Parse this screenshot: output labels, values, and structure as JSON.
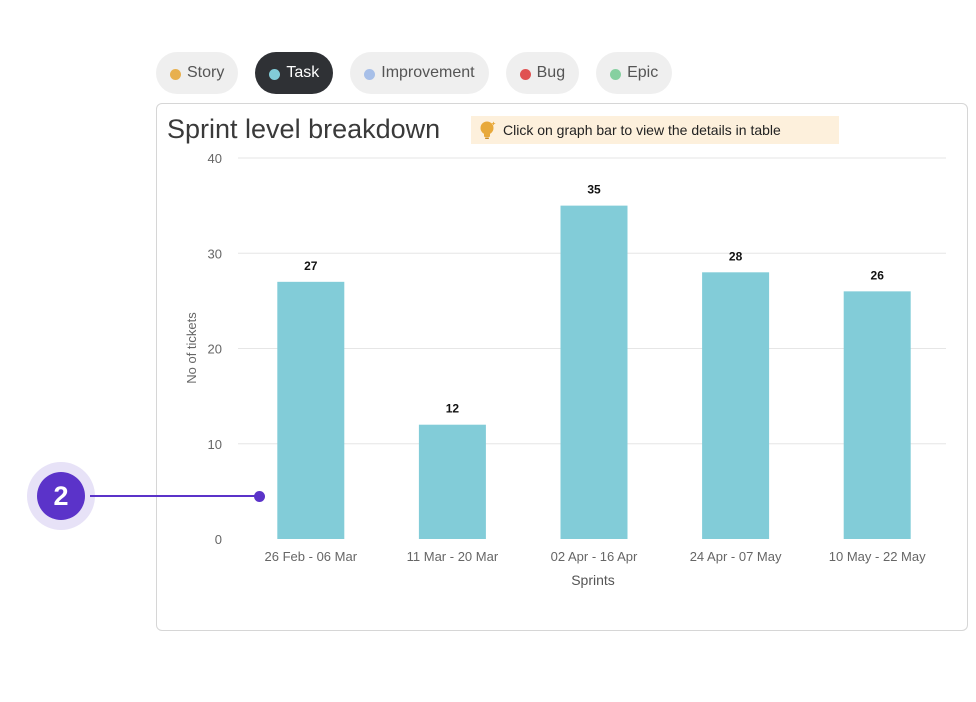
{
  "filters": {
    "tabs": [
      {
        "label": "Story",
        "color": "#e8b04e",
        "active": false
      },
      {
        "label": "Task",
        "color": "#82ccd8",
        "active": true
      },
      {
        "label": "Improvement",
        "color": "#a7bfe8",
        "active": false
      },
      {
        "label": "Bug",
        "color": "#e05252",
        "active": false
      },
      {
        "label": "Epic",
        "color": "#86d0a0",
        "active": false
      }
    ]
  },
  "card": {
    "title": "Sprint level breakdown",
    "hint": "Click on graph bar to view the details in table",
    "hint_icon": "lightbulb-icon"
  },
  "annotation": {
    "number": "2"
  },
  "chart_data": {
    "type": "bar",
    "categories": [
      "26 Feb - 06 Mar",
      "11 Mar - 20 Mar",
      "02 Apr - 16 Apr",
      "24 Apr - 07 May",
      "10 May - 22 May"
    ],
    "values": [
      27,
      12,
      35,
      28,
      26
    ],
    "xlabel": "Sprints",
    "ylabel": "No of tickets",
    "ylim": [
      0,
      40
    ],
    "yticks": [
      0,
      10,
      20,
      30,
      40
    ],
    "bar_color": "#82ccd8",
    "grid": true,
    "data_labels": true
  }
}
